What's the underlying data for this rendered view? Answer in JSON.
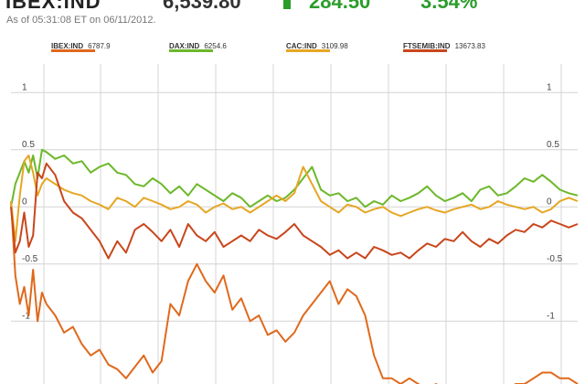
{
  "header": {
    "ticker": "IBEX:IND",
    "price": "6,539.80",
    "change": "284.50",
    "change_pct": "3.54%",
    "timestamp": "As of 05:31:08 ET on 06/11/2012."
  },
  "colors": {
    "ibex": "#e0691c",
    "dax": "#6cb82a",
    "cac": "#e6a624",
    "ftse": "#c9461c",
    "grid": "#d4d4d4",
    "up": "#2a9d2a"
  },
  "chart_data": {
    "type": "line",
    "title": "",
    "xlabel": "",
    "ylabel": "",
    "ylim": [
      -1.55,
      1.25
    ],
    "y_ticks": [
      -1,
      -0.5,
      0,
      0.5,
      1
    ],
    "y_tick_labels": [
      "-1",
      "-0.5",
      "0",
      "0.5",
      "1"
    ],
    "grid": true,
    "legend": "top",
    "x_range": [
      0,
      64
    ],
    "series": [
      {
        "name": "IBEX:IND",
        "legend_value": "6787.9",
        "color": "#e0691c",
        "x": [
          0,
          0.5,
          1,
          1.5,
          2,
          2.5,
          3,
          3.5,
          4,
          5,
          6,
          7,
          8,
          9,
          10,
          11,
          12,
          13,
          14,
          15,
          16,
          17,
          18,
          19,
          20,
          21,
          22,
          23,
          24,
          25,
          26,
          27,
          28,
          29,
          30,
          31,
          32,
          33,
          34,
          35,
          36,
          37,
          38,
          39,
          40,
          41,
          42,
          43,
          44,
          45,
          46,
          47,
          48,
          49,
          50,
          51,
          52,
          53,
          54,
          55,
          56,
          57,
          58,
          59,
          60,
          61,
          62,
          63,
          64
        ],
        "y": [
          0.05,
          -0.6,
          -0.85,
          -0.7,
          -0.95,
          -0.55,
          -1.0,
          -0.75,
          -0.85,
          -0.95,
          -1.1,
          -1.05,
          -1.2,
          -1.3,
          -1.25,
          -1.38,
          -1.42,
          -1.5,
          -1.4,
          -1.3,
          -1.45,
          -1.35,
          -0.85,
          -0.95,
          -0.65,
          -0.5,
          -0.65,
          -0.75,
          -0.6,
          -0.9,
          -0.8,
          -1.0,
          -0.95,
          -1.12,
          -1.08,
          -1.18,
          -1.1,
          -0.95,
          -0.85,
          -0.75,
          -0.65,
          -0.85,
          -0.72,
          -0.78,
          -0.95,
          -1.3,
          -1.5,
          -1.5,
          -1.55,
          -1.5,
          -1.55,
          -1.6,
          -1.55,
          -1.6,
          -1.6,
          -1.6,
          -1.6,
          -1.6,
          -1.6,
          -1.6,
          -1.6,
          -1.55,
          -1.55,
          -1.5,
          -1.45,
          -1.45,
          -1.5,
          -1.5,
          -1.55
        ]
      },
      {
        "name": "DAX:IND",
        "legend_value": "6254.6",
        "color": "#6cb82a",
        "x": [
          0,
          0.5,
          1,
          1.5,
          2,
          2.5,
          3,
          3.5,
          4,
          5,
          6,
          7,
          8,
          9,
          10,
          11,
          12,
          13,
          14,
          15,
          16,
          17,
          18,
          19,
          20,
          21,
          22,
          23,
          24,
          25,
          26,
          27,
          28,
          29,
          30,
          31,
          32,
          33,
          34,
          35,
          36,
          37,
          38,
          39,
          40,
          41,
          42,
          43,
          44,
          45,
          46,
          47,
          48,
          49,
          50,
          51,
          52,
          53,
          54,
          55,
          56,
          57,
          58,
          59,
          60,
          61,
          62,
          63,
          64
        ],
        "y": [
          0.0,
          0.2,
          0.3,
          0.4,
          0.3,
          0.45,
          0.25,
          0.5,
          0.48,
          0.42,
          0.45,
          0.38,
          0.4,
          0.3,
          0.35,
          0.38,
          0.3,
          0.28,
          0.2,
          0.18,
          0.25,
          0.2,
          0.12,
          0.18,
          0.1,
          0.2,
          0.15,
          0.1,
          0.05,
          0.12,
          0.08,
          0.0,
          0.05,
          0.1,
          0.05,
          0.08,
          0.15,
          0.25,
          0.35,
          0.15,
          0.1,
          0.12,
          0.05,
          0.08,
          0.0,
          0.05,
          0.02,
          0.1,
          0.05,
          0.08,
          0.12,
          0.18,
          0.1,
          0.05,
          0.08,
          0.12,
          0.05,
          0.15,
          0.18,
          0.1,
          0.12,
          0.18,
          0.25,
          0.22,
          0.28,
          0.22,
          0.15,
          0.12,
          0.1
        ]
      },
      {
        "name": "CAC:IND",
        "legend_value": "3109.98",
        "color": "#e6a624",
        "x": [
          0,
          0.5,
          1,
          1.5,
          2,
          2.5,
          3,
          3.5,
          4,
          5,
          6,
          7,
          8,
          9,
          10,
          11,
          12,
          13,
          14,
          15,
          16,
          17,
          18,
          19,
          20,
          21,
          22,
          23,
          24,
          25,
          26,
          27,
          28,
          29,
          30,
          31,
          32,
          33,
          34,
          35,
          36,
          37,
          38,
          39,
          40,
          41,
          42,
          43,
          44,
          45,
          46,
          47,
          48,
          49,
          50,
          51,
          52,
          53,
          54,
          55,
          56,
          57,
          58,
          59,
          60,
          61,
          62,
          63,
          64
        ],
        "y": [
          0.05,
          -0.3,
          0.1,
          0.4,
          0.45,
          0.3,
          0.1,
          0.2,
          0.25,
          0.2,
          0.15,
          0.12,
          0.1,
          0.05,
          0.02,
          -0.02,
          0.08,
          0.05,
          0.0,
          0.08,
          0.05,
          0.02,
          -0.02,
          0.0,
          0.05,
          0.02,
          -0.05,
          0.0,
          0.03,
          -0.02,
          0.0,
          -0.05,
          0.0,
          0.05,
          0.1,
          0.05,
          0.12,
          0.35,
          0.2,
          0.05,
          0.0,
          -0.05,
          0.02,
          0.0,
          -0.05,
          -0.02,
          0.0,
          -0.05,
          -0.08,
          -0.05,
          -0.02,
          0.0,
          -0.03,
          -0.05,
          -0.02,
          0.0,
          0.02,
          -0.02,
          0.0,
          0.05,
          0.02,
          0.0,
          -0.02,
          0.0,
          -0.05,
          -0.02,
          0.05,
          0.08,
          0.05
        ]
      },
      {
        "name": "FTSEMIB:IND",
        "legend_value": "13673.83",
        "color": "#c9461c",
        "x": [
          0,
          0.5,
          1,
          1.5,
          2,
          2.5,
          3,
          3.5,
          4,
          5,
          6,
          7,
          8,
          9,
          10,
          11,
          12,
          13,
          14,
          15,
          16,
          17,
          18,
          19,
          20,
          21,
          22,
          23,
          24,
          25,
          26,
          27,
          28,
          29,
          30,
          31,
          32,
          33,
          34,
          35,
          36,
          37,
          38,
          39,
          40,
          41,
          42,
          43,
          44,
          45,
          46,
          47,
          48,
          49,
          50,
          51,
          52,
          53,
          54,
          55,
          56,
          57,
          58,
          59,
          60,
          61,
          62,
          63,
          64
        ],
        "y": [
          0.0,
          -0.4,
          -0.3,
          -0.05,
          -0.35,
          -0.25,
          0.3,
          0.25,
          0.38,
          0.28,
          0.05,
          -0.05,
          -0.1,
          -0.2,
          -0.3,
          -0.45,
          -0.3,
          -0.4,
          -0.2,
          -0.15,
          -0.22,
          -0.3,
          -0.2,
          -0.35,
          -0.15,
          -0.25,
          -0.3,
          -0.22,
          -0.35,
          -0.3,
          -0.25,
          -0.3,
          -0.2,
          -0.25,
          -0.28,
          -0.22,
          -0.15,
          -0.25,
          -0.3,
          -0.35,
          -0.42,
          -0.38,
          -0.45,
          -0.4,
          -0.45,
          -0.35,
          -0.38,
          -0.42,
          -0.4,
          -0.45,
          -0.38,
          -0.32,
          -0.35,
          -0.28,
          -0.3,
          -0.22,
          -0.3,
          -0.35,
          -0.28,
          -0.32,
          -0.25,
          -0.2,
          -0.22,
          -0.15,
          -0.18,
          -0.12,
          -0.15,
          -0.18,
          -0.15
        ]
      }
    ]
  }
}
